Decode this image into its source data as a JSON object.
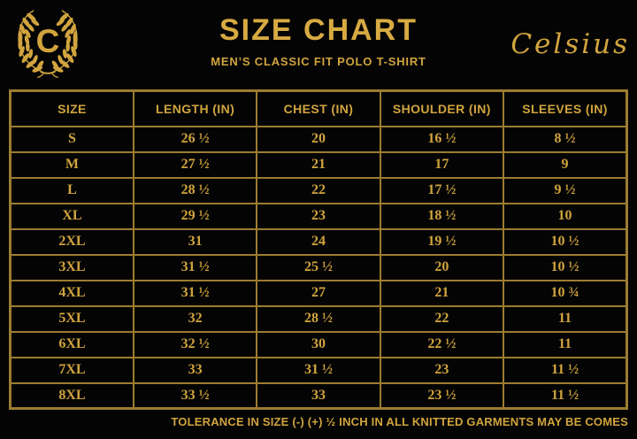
{
  "brand": {
    "logo_letter": "C",
    "name": "Celsius"
  },
  "header": {
    "title": "SIZE CHART",
    "subtitle": "MEN’S CLASSIC FIT POLO T-SHIRT"
  },
  "table": {
    "columns": [
      "SIZE",
      "LENGTH (IN)",
      "CHEST (IN)",
      "SHOULDER (IN)",
      "SLEEVES (IN)"
    ],
    "rows": [
      [
        "S",
        "26 ½",
        "20",
        "16 ½",
        "8 ½"
      ],
      [
        "M",
        "27 ½",
        "21",
        "17",
        "9"
      ],
      [
        "L",
        "28 ½",
        "22",
        "17 ½",
        "9 ½"
      ],
      [
        "XL",
        "29 ½",
        "23",
        "18 ½",
        "10"
      ],
      [
        "2XL",
        "31",
        "24",
        "19 ½",
        "10 ½"
      ],
      [
        "3XL",
        "31 ½",
        "25 ½",
        "20",
        "10 ½"
      ],
      [
        "4XL",
        "31 ½",
        "27",
        "21",
        "10 ¾"
      ],
      [
        "5XL",
        "32",
        "28 ½",
        "22",
        "11"
      ],
      [
        "6XL",
        "32 ½",
        "30",
        "22 ½",
        "11"
      ],
      [
        "7XL",
        "33",
        "31 ½",
        "23",
        "11 ½"
      ],
      [
        "8XL",
        "33 ½",
        "33",
        "23 ½",
        "11 ½"
      ]
    ]
  },
  "footer": {
    "note": "TOLERANCE IN SIZE (-) (+) ½ INCH IN ALL KNITTED GARMENTS MAY BE COMES"
  },
  "icons": {
    "logo": "laurel-wreath-icon"
  },
  "colors": {
    "background": "#040404",
    "gold_text": "#d1a43e",
    "gold_title": "#d7aa42",
    "gold_border": "#9c7c31"
  }
}
